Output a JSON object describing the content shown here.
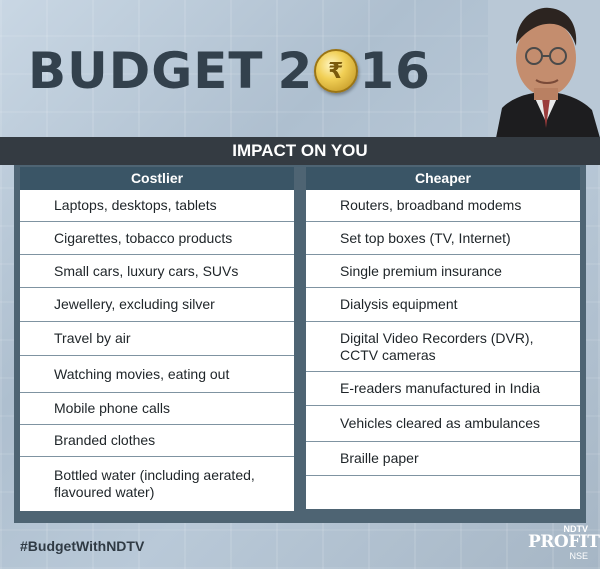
{
  "header": {
    "title_prefix": "BUDGET",
    "year_start": "2",
    "coin_symbol": "₹",
    "year_end": "16"
  },
  "banner": {
    "title": "IMPACT ON YOU"
  },
  "costlier": {
    "heading": "Costlier",
    "items": [
      "Laptops, desktops, tablets",
      "Cigarettes, tobacco products",
      "Small cars, luxury cars, SUVs",
      "Jewellery, excluding silver",
      "Travel by air",
      "Watching movies, eating out",
      "Mobile phone calls",
      "Branded clothes",
      "Bottled water (including aerated, flavoured water)"
    ]
  },
  "cheaper": {
    "heading": "Cheaper",
    "items": [
      "Routers, broadband modems",
      "Set top boxes (TV, Internet)",
      "Single premium insurance",
      "Dialysis equipment",
      "Digital Video Recorders (DVR), CCTV cameras",
      "E-readers manufactured in India",
      "Vehicles cleared as ambulances",
      "Braille paper",
      ""
    ]
  },
  "footer": {
    "hashtag": "#BudgetWithNDTV",
    "logo_top": "NDTV",
    "logo_main": "PROFIT",
    "logo_sub": "NSE"
  },
  "colors": {
    "column_header": "#3a5566",
    "banner": "#343b42",
    "title_text": "#33414d"
  }
}
